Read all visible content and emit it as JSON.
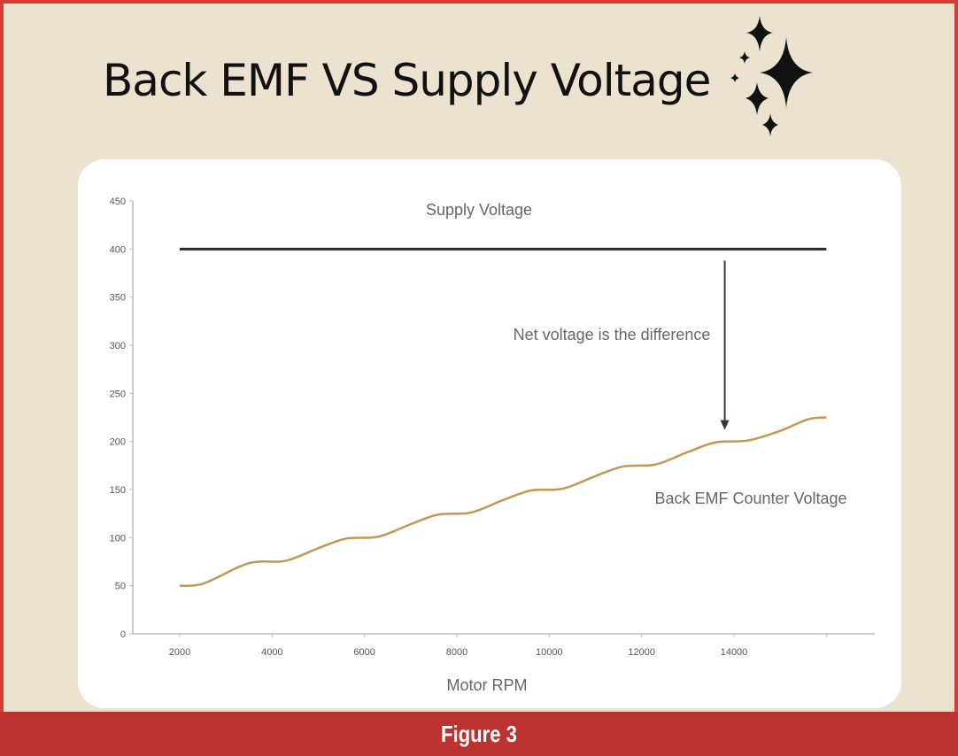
{
  "header": {
    "title": "Back EMF VS Supply Voltage",
    "decoration": "sparkles-icon"
  },
  "footer": {
    "caption": "Figure 3"
  },
  "colors": {
    "border": "#d63b34",
    "background": "#ebe3cf",
    "supply": "#2a2a2a",
    "back_emf": "#c09a55",
    "footer": "#bb3330"
  },
  "chart_data": {
    "type": "line",
    "title": "Back EMF VS Supply Voltage",
    "xlabel": "Motor RPM",
    "ylabel": "",
    "xlim": [
      1000,
      17000
    ],
    "ylim": [
      0,
      450
    ],
    "x_ticks": [
      2000,
      4000,
      6000,
      8000,
      10000,
      12000,
      14000
    ],
    "x_tick_labels": [
      "2000",
      "4000",
      "6000",
      "8000",
      "10000",
      "12000",
      "14000"
    ],
    "y_ticks": [
      0,
      50,
      100,
      150,
      200,
      250,
      300,
      350,
      400,
      450
    ],
    "y_tick_labels": [
      "0",
      "50",
      "100",
      "150",
      "200",
      "250",
      "300",
      "350",
      "400",
      "450"
    ],
    "grid": false,
    "series": [
      {
        "name": "Supply Voltage",
        "x": [
          2000,
          16000
        ],
        "y": [
          400,
          400
        ]
      },
      {
        "name": "Back EMF Counter Voltage",
        "x": [
          2000,
          2500,
          3300,
          3700,
          4300,
          5000,
          5600,
          6300,
          7000,
          7600,
          8300,
          9000,
          9600,
          10300,
          11000,
          11600,
          12300,
          13000,
          13600,
          14300,
          15000,
          15600,
          16000
        ],
        "y": [
          50,
          52,
          70,
          75,
          76,
          89,
          99,
          101,
          114,
          124,
          126,
          139,
          149,
          151,
          164,
          174,
          176,
          189,
          199,
          201,
          211,
          223,
          225
        ]
      }
    ],
    "annotations": [
      {
        "text": "Supply Voltage"
      },
      {
        "text": "Net voltage is the difference",
        "arrow_from": [
          13800,
          388
        ],
        "arrow_to": [
          13800,
          212
        ]
      },
      {
        "text": "Back EMF Counter Voltage"
      }
    ]
  }
}
